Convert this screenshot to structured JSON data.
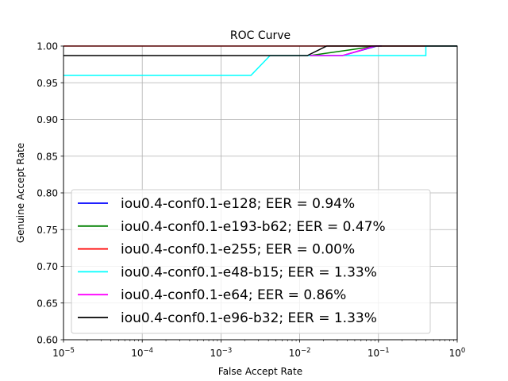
{
  "chart_data": {
    "type": "line",
    "title": "ROC Curve",
    "xlabel": "False Accept Rate",
    "ylabel": "Genuine Accept Rate",
    "xscale": "log",
    "xlim": [
      1e-05,
      1
    ],
    "ylim": [
      0.6,
      1.0
    ],
    "grid": true,
    "legend_position": "lower-center",
    "x_ticks": [
      {
        "value": 1e-05,
        "base": "10",
        "exp": "−5"
      },
      {
        "value": 0.0001,
        "base": "10",
        "exp": "−4"
      },
      {
        "value": 0.001,
        "base": "10",
        "exp": "−3"
      },
      {
        "value": 0.01,
        "base": "10",
        "exp": "−2"
      },
      {
        "value": 0.1,
        "base": "10",
        "exp": "−1"
      },
      {
        "value": 1,
        "base": "10",
        "exp": "0"
      }
    ],
    "y_ticks": [
      {
        "value": 0.6,
        "label": "0.60"
      },
      {
        "value": 0.65,
        "label": "0.65"
      },
      {
        "value": 0.7,
        "label": "0.70"
      },
      {
        "value": 0.75,
        "label": "0.75"
      },
      {
        "value": 0.8,
        "label": "0.80"
      },
      {
        "value": 0.85,
        "label": "0.85"
      },
      {
        "value": 0.9,
        "label": "0.90"
      },
      {
        "value": 0.95,
        "label": "0.95"
      },
      {
        "value": 1.0,
        "label": "1.00"
      }
    ],
    "series": [
      {
        "name": "iou0.4-conf0.1-e128; EER = 0.94%",
        "color": "#0000ff",
        "x": [
          0.0135,
          0.035,
          0.095,
          0.11
        ],
        "y": [
          0.987,
          0.987,
          1.0,
          1.0
        ]
      },
      {
        "name": "iou0.4-conf0.1-e193-b62; EER = 0.47%",
        "color": "#008000",
        "x": [
          0.0135,
          0.095
        ],
        "y": [
          0.987,
          1.0
        ]
      },
      {
        "name": "iou0.4-conf0.1-e255; EER = 0.00%",
        "color": "#ff0000",
        "x": [
          1e-05,
          1
        ],
        "y": [
          1.0,
          1.0
        ]
      },
      {
        "name": "iou0.4-conf0.1-e48-b15; EER = 1.33%",
        "color": "#00ffff",
        "x": [
          1e-05,
          0.0024,
          0.0042,
          0.4,
          0.4,
          1
        ],
        "y": [
          0.96,
          0.96,
          0.987,
          0.987,
          1.0,
          1.0
        ]
      },
      {
        "name": "iou0.4-conf0.1-e64; EER = 0.86%",
        "color": "#ff00ff",
        "x": [
          0.0135,
          0.035,
          0.09,
          0.1
        ],
        "y": [
          0.987,
          0.987,
          1.0,
          1.0
        ]
      },
      {
        "name": "iou0.4-conf0.1-e96-b32; EER = 1.33%",
        "color": "#000000",
        "x": [
          1e-05,
          0.0125,
          0.022,
          1
        ],
        "y": [
          0.987,
          0.987,
          1.0,
          1.0
        ]
      }
    ]
  }
}
